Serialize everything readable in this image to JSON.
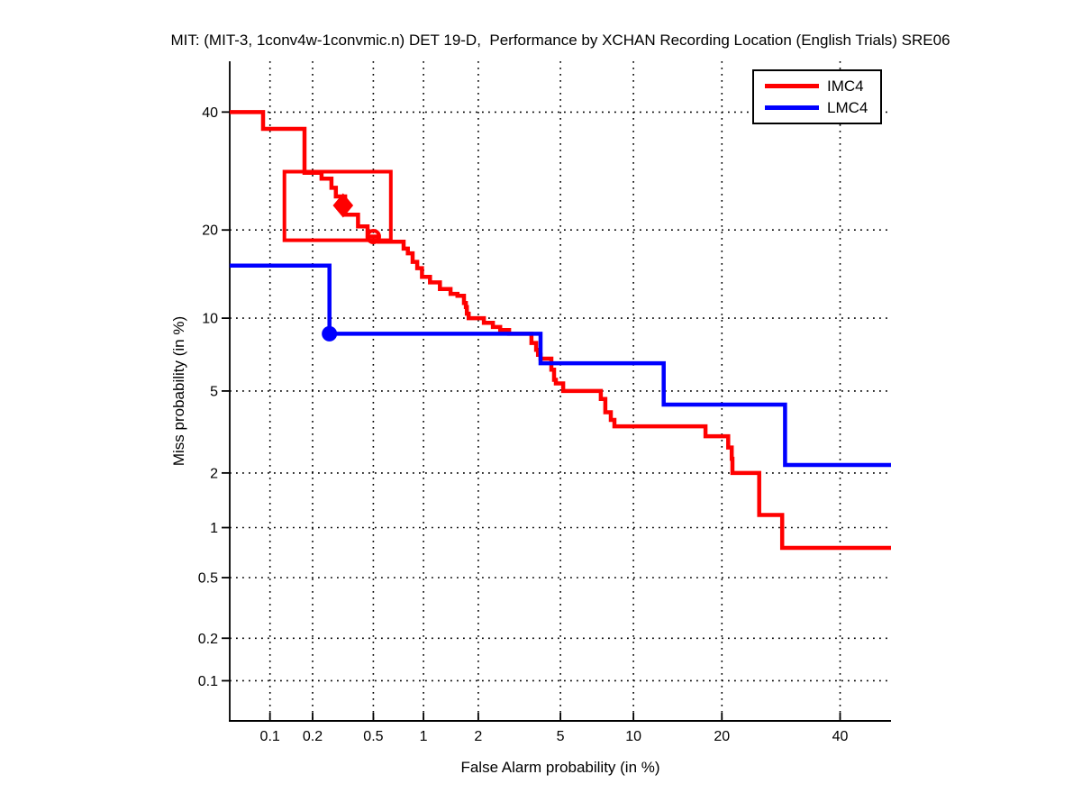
{
  "title": "MIT: (MIT-3, 1conv4w-1convmic.n) DET 19-D,  Performance by XCHAN Recording Location (English Trials) SRE06",
  "axes": {
    "xlabel": "False Alarm probability (in %)",
    "ylabel": "Miss probability (in %)"
  },
  "chart_data": {
    "type": "line",
    "subtype": "DET-curve",
    "scale": "normal-deviate (probit) on both axes",
    "title": "MIT: (MIT-3, 1conv4w-1convmic.n) DET 19-D,  Performance by XCHAN Recording Location (English Trials) SRE06",
    "xlabel": "False Alarm probability (in %)",
    "ylabel": "Miss probability (in %)",
    "xlim_pct": [
      0.05,
      50
    ],
    "ylim_pct": [
      0.05,
      50
    ],
    "x_tick_labels": [
      "0.1",
      "0.2",
      "0.5",
      "1",
      "2",
      "5",
      "10",
      "20",
      "40"
    ],
    "y_tick_labels": [
      "40",
      "20",
      "10",
      "5",
      "2",
      "1",
      "0.5",
      "0.2",
      "0.1"
    ],
    "grid": "dotted black, on",
    "legend_position": "northeast",
    "series": [
      {
        "name": "IMC4",
        "color": "#ff0000",
        "points_fa_miss_pct": [
          [
            0.05,
            40.0
          ],
          [
            0.089,
            40.0
          ],
          [
            0.089,
            36.8
          ],
          [
            0.176,
            36.8
          ],
          [
            0.176,
            28.9
          ],
          [
            0.23,
            28.9
          ],
          [
            0.23,
            27.9
          ],
          [
            0.268,
            27.9
          ],
          [
            0.268,
            26.4
          ],
          [
            0.287,
            26.4
          ],
          [
            0.287,
            25.0
          ],
          [
            0.33,
            25.0
          ],
          [
            0.33,
            22.2
          ],
          [
            0.4,
            22.2
          ],
          [
            0.4,
            20.5
          ],
          [
            0.46,
            20.5
          ],
          [
            0.46,
            19.1
          ],
          [
            0.54,
            19.1
          ],
          [
            0.54,
            18.4
          ],
          [
            0.765,
            18.4
          ],
          [
            0.765,
            17.5
          ],
          [
            0.81,
            17.5
          ],
          [
            0.81,
            16.9
          ],
          [
            0.865,
            16.9
          ],
          [
            0.865,
            15.85
          ],
          [
            0.92,
            15.85
          ],
          [
            0.92,
            15.1
          ],
          [
            0.98,
            15.1
          ],
          [
            0.98,
            14.1
          ],
          [
            1.09,
            14.1
          ],
          [
            1.09,
            13.5
          ],
          [
            1.24,
            13.5
          ],
          [
            1.24,
            12.8
          ],
          [
            1.42,
            12.8
          ],
          [
            1.42,
            12.3
          ],
          [
            1.55,
            12.3
          ],
          [
            1.55,
            12.1
          ],
          [
            1.68,
            12.1
          ],
          [
            1.68,
            11.4
          ],
          [
            1.72,
            11.4
          ],
          [
            1.72,
            11.0
          ],
          [
            1.74,
            11.0
          ],
          [
            1.74,
            10.4
          ],
          [
            1.78,
            10.4
          ],
          [
            1.78,
            10.0
          ],
          [
            2.14,
            10.0
          ],
          [
            2.14,
            9.6
          ],
          [
            2.38,
            9.6
          ],
          [
            2.38,
            9.25
          ],
          [
            2.59,
            9.25
          ],
          [
            2.59,
            9.0
          ],
          [
            2.87,
            9.0
          ],
          [
            2.87,
            8.7
          ],
          [
            3.68,
            8.7
          ],
          [
            3.68,
            8.0
          ],
          [
            3.87,
            8.0
          ],
          [
            3.87,
            7.5
          ],
          [
            3.95,
            7.5
          ],
          [
            3.95,
            7.15
          ],
          [
            4.06,
            7.15
          ],
          [
            4.06,
            6.9
          ],
          [
            4.55,
            6.9
          ],
          [
            4.55,
            6.2
          ],
          [
            4.68,
            6.2
          ],
          [
            4.68,
            5.6
          ],
          [
            4.77,
            5.6
          ],
          [
            4.77,
            5.4
          ],
          [
            5.14,
            5.4
          ],
          [
            5.14,
            5.0
          ],
          [
            7.44,
            5.0
          ],
          [
            7.44,
            4.6
          ],
          [
            7.76,
            4.6
          ],
          [
            7.76,
            4.0
          ],
          [
            8.16,
            4.0
          ],
          [
            8.16,
            3.68
          ],
          [
            8.44,
            3.68
          ],
          [
            8.44,
            3.43
          ],
          [
            17.8,
            3.43
          ],
          [
            17.8,
            3.07
          ],
          [
            20.9,
            3.07
          ],
          [
            20.9,
            2.7
          ],
          [
            21.4,
            2.7
          ],
          [
            21.4,
            2.37
          ],
          [
            21.5,
            2.37
          ],
          [
            21.5,
            2.0
          ],
          [
            25.6,
            2.0
          ],
          [
            25.6,
            1.18
          ],
          [
            29.4,
            1.18
          ],
          [
            29.4,
            0.76
          ],
          [
            50,
            0.76
          ]
        ]
      },
      {
        "name": "LMC4",
        "color": "#0000ff",
        "points_fa_miss_pct": [
          [
            0.05,
            15.4
          ],
          [
            0.26,
            15.4
          ],
          [
            0.26,
            8.7
          ],
          [
            4.06,
            8.7
          ],
          [
            4.06,
            6.6
          ],
          [
            12.9,
            6.6
          ],
          [
            12.9,
            4.34
          ],
          [
            29.9,
            4.34
          ],
          [
            29.9,
            2.2
          ],
          [
            50,
            2.2
          ]
        ]
      }
    ],
    "annotations": {
      "box": {
        "color": "#ff0000",
        "fa_range_pct": [
          0.127,
          0.64
        ],
        "miss_range_pct": [
          18.6,
          29.1
        ]
      },
      "markers": [
        {
          "series": "IMC4",
          "shape": "diamond",
          "filled": true,
          "fa_pct": 0.32,
          "miss_pct": 23.6,
          "color": "#ff0000"
        },
        {
          "series": "IMC4",
          "shape": "circle",
          "filled": false,
          "fa_pct": 0.5,
          "miss_pct": 19.1,
          "color": "#ff0000"
        },
        {
          "series": "LMC4",
          "shape": "circle",
          "filled": true,
          "fa_pct": 0.26,
          "miss_pct": 8.7,
          "color": "#0000ff"
        }
      ]
    }
  }
}
